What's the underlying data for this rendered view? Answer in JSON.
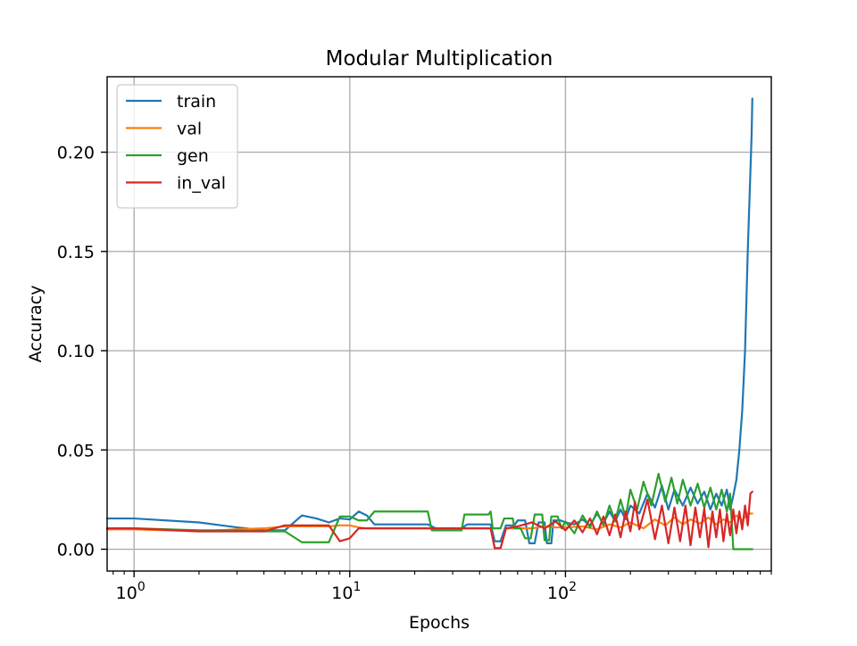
{
  "chart_data": {
    "type": "line",
    "title": "Modular Multiplication",
    "xlabel": "Epochs",
    "ylabel": "Accuracy",
    "xscale": "log",
    "xlim": [
      0.75,
      900
    ],
    "ylim": [
      -0.011,
      0.238
    ],
    "grid": true,
    "legend_position": "upper left",
    "x_ticks": [
      {
        "value": 1,
        "base": "10",
        "exp": "0"
      },
      {
        "value": 10,
        "base": "10",
        "exp": "1"
      },
      {
        "value": 100,
        "base": "10",
        "exp": "2"
      }
    ],
    "y_ticks": [
      {
        "value": 0.0,
        "label": "0.00"
      },
      {
        "value": 0.05,
        "label": "0.05"
      },
      {
        "value": 0.1,
        "label": "0.10"
      },
      {
        "value": 0.15,
        "label": "0.15"
      },
      {
        "value": 0.2,
        "label": "0.20"
      }
    ],
    "series": [
      {
        "name": "train",
        "color": "#1f77b4",
        "points": [
          [
            0.75,
            0.0155
          ],
          [
            1,
            0.0155
          ],
          [
            2,
            0.0135
          ],
          [
            3,
            0.011
          ],
          [
            4,
            0.0095
          ],
          [
            5,
            0.0095
          ],
          [
            6,
            0.017
          ],
          [
            7,
            0.0155
          ],
          [
            8,
            0.0135
          ],
          [
            9,
            0.0155
          ],
          [
            10,
            0.015
          ],
          [
            11,
            0.019
          ],
          [
            12,
            0.017
          ],
          [
            13,
            0.0125
          ],
          [
            15,
            0.0125
          ],
          [
            20,
            0.0125
          ],
          [
            23,
            0.0125
          ],
          [
            25,
            0.0105
          ],
          [
            30,
            0.0105
          ],
          [
            33,
            0.0105
          ],
          [
            35,
            0.0125
          ],
          [
            40,
            0.0125
          ],
          [
            45,
            0.0125
          ],
          [
            47,
            0.004
          ],
          [
            50,
            0.004
          ],
          [
            53,
            0.012
          ],
          [
            58,
            0.012
          ],
          [
            60,
            0.0145
          ],
          [
            65,
            0.0145
          ],
          [
            68,
            0.003
          ],
          [
            72,
            0.003
          ],
          [
            75,
            0.0135
          ],
          [
            80,
            0.0135
          ],
          [
            82,
            0.003
          ],
          [
            86,
            0.003
          ],
          [
            88,
            0.0145
          ],
          [
            95,
            0.0145
          ],
          [
            100,
            0.0135
          ],
          [
            110,
            0.0125
          ],
          [
            120,
            0.015
          ],
          [
            130,
            0.012
          ],
          [
            140,
            0.018
          ],
          [
            150,
            0.013
          ],
          [
            160,
            0.019
          ],
          [
            170,
            0.014
          ],
          [
            180,
            0.02
          ],
          [
            190,
            0.015
          ],
          [
            200,
            0.022
          ],
          [
            220,
            0.018
          ],
          [
            240,
            0.028
          ],
          [
            260,
            0.021
          ],
          [
            280,
            0.032
          ],
          [
            300,
            0.02
          ],
          [
            320,
            0.03
          ],
          [
            350,
            0.022
          ],
          [
            380,
            0.031
          ],
          [
            410,
            0.023
          ],
          [
            440,
            0.029
          ],
          [
            470,
            0.02
          ],
          [
            500,
            0.028
          ],
          [
            530,
            0.022
          ],
          [
            560,
            0.03
          ],
          [
            580,
            0.02
          ],
          [
            600,
            0.027
          ],
          [
            620,
            0.035
          ],
          [
            640,
            0.05
          ],
          [
            660,
            0.07
          ],
          [
            680,
            0.1
          ],
          [
            700,
            0.15
          ],
          [
            720,
            0.19
          ],
          [
            730,
            0.21
          ],
          [
            735,
            0.227
          ]
        ]
      },
      {
        "name": "val",
        "color": "#ff7f0e",
        "points": [
          [
            0.75,
            0.01
          ],
          [
            1,
            0.01
          ],
          [
            2,
            0.009
          ],
          [
            3,
            0.01
          ],
          [
            4,
            0.0105
          ],
          [
            5,
            0.0115
          ],
          [
            6,
            0.0115
          ],
          [
            7,
            0.0115
          ],
          [
            8,
            0.0115
          ],
          [
            9,
            0.012
          ],
          [
            10,
            0.012
          ],
          [
            11,
            0.011
          ],
          [
            12,
            0.0105
          ],
          [
            20,
            0.0105
          ],
          [
            30,
            0.0105
          ],
          [
            40,
            0.0105
          ],
          [
            45,
            0.0105
          ],
          [
            47,
            0.0005
          ],
          [
            50,
            0.0005
          ],
          [
            53,
            0.0105
          ],
          [
            60,
            0.0105
          ],
          [
            70,
            0.0105
          ],
          [
            80,
            0.0115
          ],
          [
            90,
            0.011
          ],
          [
            100,
            0.011
          ],
          [
            120,
            0.0115
          ],
          [
            140,
            0.01
          ],
          [
            160,
            0.0125
          ],
          [
            180,
            0.011
          ],
          [
            200,
            0.0135
          ],
          [
            230,
            0.0105
          ],
          [
            260,
            0.015
          ],
          [
            290,
            0.012
          ],
          [
            320,
            0.016
          ],
          [
            350,
            0.0125
          ],
          [
            380,
            0.015
          ],
          [
            420,
            0.013
          ],
          [
            460,
            0.016
          ],
          [
            500,
            0.0125
          ],
          [
            540,
            0.015
          ],
          [
            580,
            0.0135
          ],
          [
            620,
            0.017
          ],
          [
            660,
            0.0145
          ],
          [
            700,
            0.018
          ],
          [
            735,
            0.018
          ]
        ]
      },
      {
        "name": "gen",
        "color": "#2ca02c",
        "points": [
          [
            0.75,
            0.0105
          ],
          [
            1,
            0.0105
          ],
          [
            2,
            0.0095
          ],
          [
            3,
            0.0095
          ],
          [
            4,
            0.009
          ],
          [
            5,
            0.009
          ],
          [
            6,
            0.0035
          ],
          [
            7,
            0.0035
          ],
          [
            8,
            0.0035
          ],
          [
            9,
            0.0165
          ],
          [
            10,
            0.0165
          ],
          [
            11,
            0.0145
          ],
          [
            12,
            0.0145
          ],
          [
            13,
            0.019
          ],
          [
            20,
            0.019
          ],
          [
            23,
            0.019
          ],
          [
            24,
            0.0095
          ],
          [
            30,
            0.0095
          ],
          [
            33,
            0.0095
          ],
          [
            34,
            0.0175
          ],
          [
            40,
            0.0175
          ],
          [
            44,
            0.0175
          ],
          [
            45,
            0.019
          ],
          [
            46,
            0.0105
          ],
          [
            50,
            0.0105
          ],
          [
            52,
            0.0155
          ],
          [
            57,
            0.0155
          ],
          [
            58,
            0.0105
          ],
          [
            62,
            0.0105
          ],
          [
            65,
            0.0055
          ],
          [
            69,
            0.0055
          ],
          [
            72,
            0.0175
          ],
          [
            78,
            0.0175
          ],
          [
            80,
            0.0045
          ],
          [
            84,
            0.0045
          ],
          [
            86,
            0.0165
          ],
          [
            92,
            0.0165
          ],
          [
            96,
            0.0105
          ],
          [
            100,
            0.014
          ],
          [
            110,
            0.008
          ],
          [
            120,
            0.017
          ],
          [
            130,
            0.011
          ],
          [
            140,
            0.019
          ],
          [
            150,
            0.012
          ],
          [
            160,
            0.022
          ],
          [
            170,
            0.014
          ],
          [
            180,
            0.025
          ],
          [
            190,
            0.016
          ],
          [
            200,
            0.03
          ],
          [
            215,
            0.02
          ],
          [
            230,
            0.034
          ],
          [
            250,
            0.022
          ],
          [
            270,
            0.038
          ],
          [
            290,
            0.024
          ],
          [
            310,
            0.036
          ],
          [
            330,
            0.023
          ],
          [
            350,
            0.035
          ],
          [
            380,
            0.022
          ],
          [
            410,
            0.033
          ],
          [
            440,
            0.021
          ],
          [
            470,
            0.031
          ],
          [
            500,
            0.02
          ],
          [
            530,
            0.03
          ],
          [
            560,
            0.019
          ],
          [
            580,
            0.028
          ],
          [
            600,
            0.0
          ],
          [
            620,
            0.0
          ],
          [
            700,
            0.0
          ],
          [
            735,
            0.0
          ]
        ]
      },
      {
        "name": "in_val",
        "color": "#d62728",
        "points": [
          [
            0.75,
            0.0105
          ],
          [
            1,
            0.0105
          ],
          [
            2,
            0.009
          ],
          [
            3,
            0.009
          ],
          [
            4,
            0.009
          ],
          [
            5,
            0.012
          ],
          [
            8,
            0.012
          ],
          [
            9,
            0.004
          ],
          [
            10,
            0.0055
          ],
          [
            11,
            0.0105
          ],
          [
            20,
            0.0105
          ],
          [
            30,
            0.0105
          ],
          [
            40,
            0.0105
          ],
          [
            45,
            0.0105
          ],
          [
            47,
            0.0005
          ],
          [
            50,
            0.0005
          ],
          [
            53,
            0.0105
          ],
          [
            60,
            0.0115
          ],
          [
            70,
            0.0135
          ],
          [
            80,
            0.0105
          ],
          [
            90,
            0.014
          ],
          [
            100,
            0.0095
          ],
          [
            110,
            0.0145
          ],
          [
            120,
            0.0085
          ],
          [
            130,
            0.0155
          ],
          [
            140,
            0.0075
          ],
          [
            150,
            0.0165
          ],
          [
            160,
            0.007
          ],
          [
            170,
            0.0175
          ],
          [
            180,
            0.006
          ],
          [
            190,
            0.019
          ],
          [
            200,
            0.009
          ],
          [
            210,
            0.024
          ],
          [
            220,
            0.01
          ],
          [
            240,
            0.025
          ],
          [
            260,
            0.005
          ],
          [
            280,
            0.022
          ],
          [
            300,
            0.003
          ],
          [
            320,
            0.021
          ],
          [
            340,
            0.004
          ],
          [
            360,
            0.022
          ],
          [
            380,
            0.002
          ],
          [
            400,
            0.021
          ],
          [
            420,
            0.006
          ],
          [
            440,
            0.0205
          ],
          [
            460,
            0.001
          ],
          [
            480,
            0.019
          ],
          [
            500,
            0.006
          ],
          [
            520,
            0.02
          ],
          [
            540,
            0.004
          ],
          [
            560,
            0.018
          ],
          [
            580,
            0.007
          ],
          [
            600,
            0.02
          ],
          [
            620,
            0.008
          ],
          [
            640,
            0.019
          ],
          [
            660,
            0.01
          ],
          [
            680,
            0.022
          ],
          [
            700,
            0.012
          ],
          [
            720,
            0.028
          ],
          [
            735,
            0.029
          ]
        ]
      }
    ]
  }
}
